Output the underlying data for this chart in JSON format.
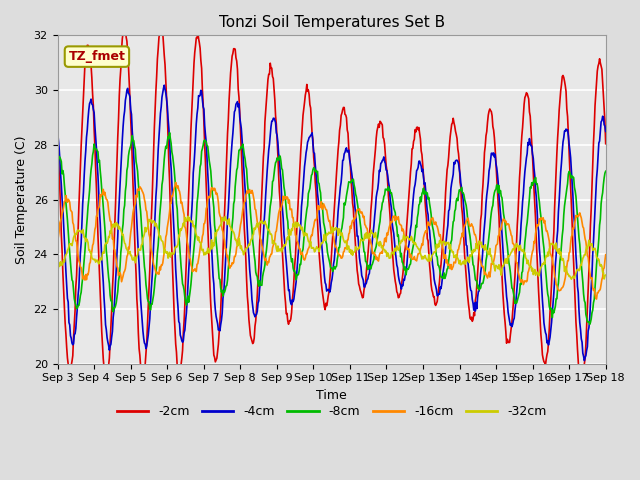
{
  "title": "Tonzi Soil Temperatures Set B",
  "xlabel": "Time",
  "ylabel": "Soil Temperature (C)",
  "ylim": [
    20,
    32
  ],
  "tick_labels": [
    "Sep 3",
    "Sep 4",
    "Sep 5",
    "Sep 6",
    "Sep 7",
    "Sep 8",
    "Sep 9",
    "Sep 10",
    "Sep 11",
    "Sep 12",
    "Sep 13",
    "Sep 14",
    "Sep 15",
    "Sep 16",
    "Sep 17",
    "Sep 18"
  ],
  "annotation_label": "TZ_fmet",
  "annotation_color": "#aa0000",
  "annotation_bg": "#ffffcc",
  "annotation_border": "#999900",
  "series": [
    {
      "label": "-2cm",
      "color": "#dd0000",
      "amplitude": 4.8,
      "phase_hr": 0,
      "mean": 25.5
    },
    {
      "label": "-4cm",
      "color": "#0000cc",
      "amplitude": 3.5,
      "phase_hr": 2,
      "mean": 25.0
    },
    {
      "label": "-8cm",
      "color": "#00bb00",
      "amplitude": 2.3,
      "phase_hr": 5,
      "mean": 24.8
    },
    {
      "label": "-16cm",
      "color": "#ff8800",
      "amplitude": 1.2,
      "phase_hr": 10,
      "mean": 24.5
    },
    {
      "label": "-32cm",
      "color": "#cccc00",
      "amplitude": 0.5,
      "phase_hr": 18,
      "mean": 24.2
    }
  ],
  "bg_color": "#dddddd",
  "plot_bg_color": "#e8e8e8",
  "grid_color": "#ffffff",
  "linewidth": 1.2,
  "n_points_per_day": 48,
  "n_days": 15,
  "title_fontsize": 11,
  "axis_label_fontsize": 9,
  "tick_fontsize": 8
}
